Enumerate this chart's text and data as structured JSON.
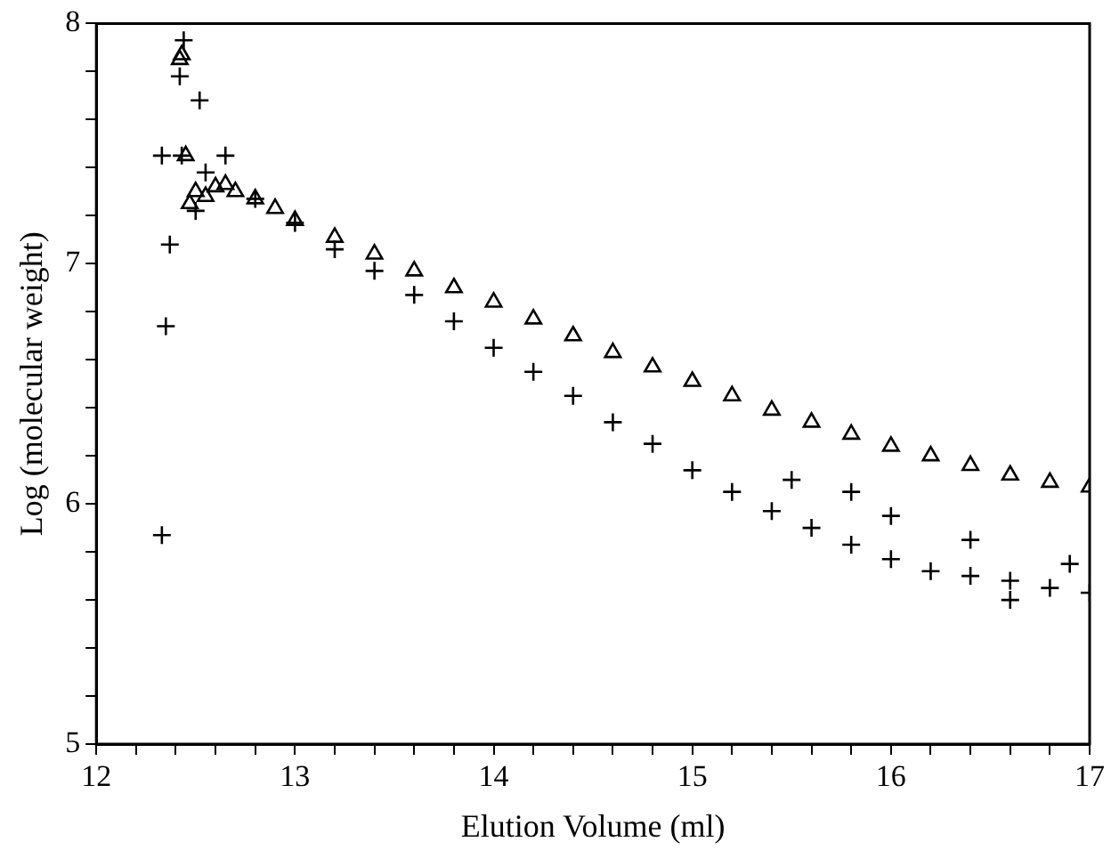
{
  "chart_data": {
    "type": "scatter",
    "xlabel": "Elution Volume (ml)",
    "ylabel": "Log (molecular weight)",
    "xlim": [
      12,
      17
    ],
    "ylim": [
      5,
      8
    ],
    "xticks": [
      12,
      {
        "value": 12.2,
        "label": null
      },
      {
        "value": 12.4,
        "label": null
      },
      {
        "value": 12.6,
        "label": null
      },
      {
        "value": 12.8,
        "label": null
      },
      13,
      {
        "value": 13.2,
        "label": null
      },
      {
        "value": 13.4,
        "label": null
      },
      {
        "value": 13.6,
        "label": null
      },
      {
        "value": 13.8,
        "label": null
      },
      14,
      {
        "value": 14.2,
        "label": null
      },
      {
        "value": 14.4,
        "label": null
      },
      {
        "value": 14.6,
        "label": null
      },
      {
        "value": 14.8,
        "label": null
      },
      15,
      {
        "value": 15.2,
        "label": null
      },
      {
        "value": 15.4,
        "label": null
      },
      {
        "value": 15.6,
        "label": null
      },
      {
        "value": 15.8,
        "label": null
      },
      16,
      {
        "value": 16.2,
        "label": null
      },
      {
        "value": 16.4,
        "label": null
      },
      {
        "value": 16.6,
        "label": null
      },
      {
        "value": 16.8,
        "label": null
      },
      17
    ],
    "yticks": [
      5,
      {
        "value": 5.2,
        "label": null
      },
      {
        "value": 5.4,
        "label": null
      },
      {
        "value": 5.6,
        "label": null
      },
      {
        "value": 5.8,
        "label": null
      },
      6,
      {
        "value": 6.2,
        "label": null
      },
      {
        "value": 6.4,
        "label": null
      },
      {
        "value": 6.6,
        "label": null
      },
      {
        "value": 6.8,
        "label": null
      },
      7,
      {
        "value": 7.2,
        "label": null
      },
      {
        "value": 7.4,
        "label": null
      },
      {
        "value": 7.6,
        "label": null
      },
      {
        "value": 7.8,
        "label": null
      },
      8
    ],
    "grid": false,
    "legend": false,
    "series": [
      {
        "color": "#000000",
        "marker": "triangle",
        "x": [
          12.43,
          12.45,
          12.42,
          12.47,
          12.5,
          12.55,
          12.6,
          12.65,
          12.7,
          12.8,
          12.9,
          13.0,
          13.2,
          13.4,
          13.6,
          13.8,
          14.0,
          14.2,
          14.4,
          14.6,
          14.8,
          15.0,
          15.2,
          15.4,
          15.6,
          15.8,
          16.0,
          16.2,
          16.4,
          16.6,
          16.8,
          17.0
        ],
        "values": [
          7.87,
          7.45,
          7.85,
          7.25,
          7.3,
          7.28,
          7.32,
          7.33,
          7.3,
          7.27,
          7.23,
          7.18,
          7.11,
          7.04,
          6.97,
          6.9,
          6.84,
          6.77,
          6.7,
          6.63,
          6.57,
          6.51,
          6.45,
          6.39,
          6.34,
          6.29,
          6.24,
          6.2,
          6.16,
          6.12,
          6.09,
          6.07
        ]
      },
      {
        "color": "#000000",
        "marker": "cross",
        "x": [
          12.33,
          12.43,
          12.44,
          12.42,
          12.52,
          12.37,
          12.35,
          12.33,
          12.55,
          12.65,
          12.5,
          12.8,
          13.0,
          13.2,
          13.4,
          13.6,
          13.8,
          14.0,
          14.2,
          14.4,
          14.6,
          14.8,
          15.0,
          15.2,
          15.4,
          15.5,
          15.6,
          15.8,
          15.8,
          16.0,
          16.0,
          16.2,
          16.4,
          16.4,
          16.6,
          16.6,
          16.8,
          16.9,
          17.0
        ],
        "values": [
          7.45,
          7.45,
          7.93,
          7.78,
          7.68,
          7.08,
          6.74,
          5.87,
          7.38,
          7.45,
          7.22,
          7.27,
          7.17,
          7.06,
          6.97,
          6.87,
          6.76,
          6.65,
          6.55,
          6.45,
          6.34,
          6.25,
          6.14,
          6.05,
          5.97,
          6.1,
          5.9,
          5.83,
          6.05,
          5.77,
          5.95,
          5.72,
          5.7,
          5.85,
          5.68,
          5.6,
          5.65,
          5.75,
          5.63
        ]
      }
    ]
  }
}
